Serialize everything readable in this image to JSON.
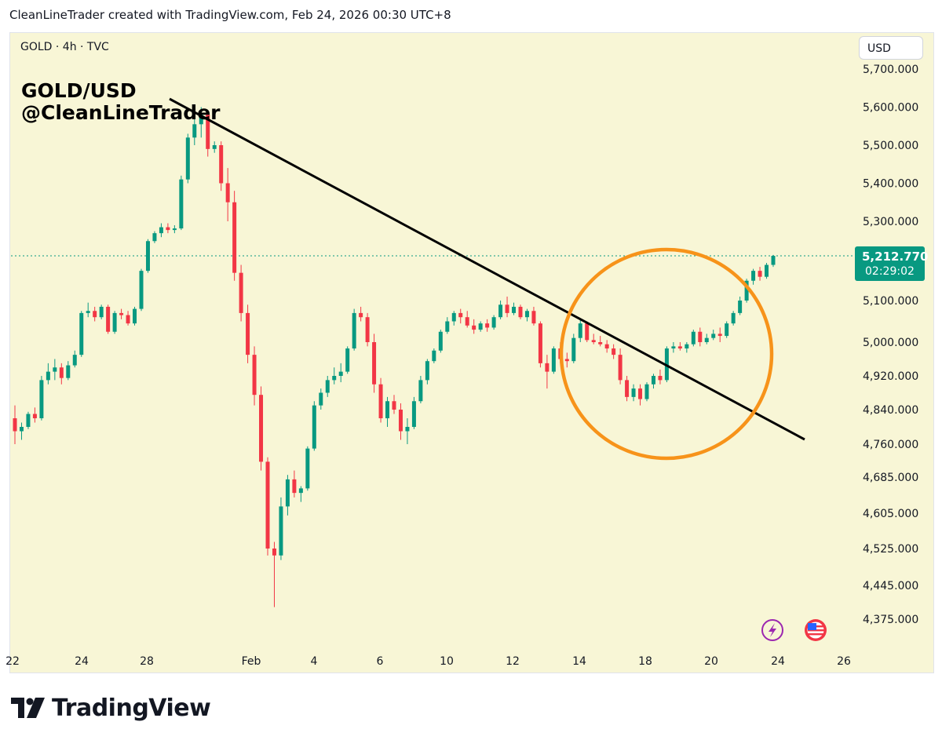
{
  "header": {
    "attribution": "CleanLineTrader created with TradingView.com, Feb 24, 2026 00:30 UTC+8"
  },
  "symbol_line": "GOLD · 4h · TVC",
  "watermark": {
    "line1": "GOLD/USD",
    "line2": "@CleanLineTrader"
  },
  "currency_button": "USD",
  "last_price": {
    "value": "5,212.770",
    "countdown": "02:29:02",
    "color": "#089981"
  },
  "footer": {
    "brand": "TradingView"
  },
  "icons": [
    "lightning-icon",
    "us-flag-icon",
    "tradingview-logo-icon"
  ],
  "colors": {
    "background": "#f8f6d6",
    "up": "#089981",
    "down": "#f23645",
    "trendline": "#000000",
    "circle": "#f7931a"
  },
  "chart_data": {
    "type": "candlestick",
    "timeframe": "4h",
    "y_ticks": [
      5700,
      5600,
      5500,
      5400,
      5300,
      5100,
      5000,
      4920,
      4840,
      4760,
      4685,
      4605,
      4525,
      4445,
      4375
    ],
    "y_tick_labels": [
      "5,700.000",
      "5,600.000",
      "5,500.000",
      "5,400.000",
      "5,300.000",
      "5,100.000",
      "5,000.000",
      "4,920.000",
      "4,840.000",
      "4,760.000",
      "4,685.000",
      "4,605.000",
      "4,525.000",
      "4,445.000",
      "4,375.000"
    ],
    "x_ticks": [
      "22",
      "24",
      "28",
      "Feb",
      "4",
      "6",
      "10",
      "12",
      "14",
      "18",
      "20",
      "24",
      "26"
    ],
    "last_price": 5212.77,
    "ohlc": [
      [
        4820,
        4850,
        4760,
        4790
      ],
      [
        4790,
        4810,
        4770,
        4800
      ],
      [
        4800,
        4835,
        4795,
        4830
      ],
      [
        4830,
        4845,
        4810,
        4820
      ],
      [
        4820,
        4920,
        4815,
        4910
      ],
      [
        4910,
        4950,
        4900,
        4930
      ],
      [
        4930,
        4960,
        4910,
        4940
      ],
      [
        4940,
        4950,
        4900,
        4915
      ],
      [
        4915,
        4955,
        4910,
        4945
      ],
      [
        4945,
        4980,
        4940,
        4970
      ],
      [
        4970,
        5075,
        4965,
        5070
      ],
      [
        5070,
        5095,
        5060,
        5075
      ],
      [
        5075,
        5085,
        5050,
        5060
      ],
      [
        5060,
        5090,
        5055,
        5085
      ],
      [
        5085,
        5090,
        5020,
        5025
      ],
      [
        5025,
        5075,
        5020,
        5070
      ],
      [
        5070,
        5080,
        5055,
        5065
      ],
      [
        5065,
        5075,
        5040,
        5045
      ],
      [
        5045,
        5085,
        5040,
        5080
      ],
      [
        5080,
        5180,
        5075,
        5175
      ],
      [
        5175,
        5255,
        5170,
        5250
      ],
      [
        5250,
        5275,
        5245,
        5270
      ],
      [
        5270,
        5295,
        5260,
        5285
      ],
      [
        5285,
        5295,
        5270,
        5278
      ],
      [
        5278,
        5290,
        5270,
        5282
      ],
      [
        5282,
        5420,
        5278,
        5410
      ],
      [
        5410,
        5530,
        5400,
        5520
      ],
      [
        5520,
        5590,
        5500,
        5555
      ],
      [
        5555,
        5600,
        5520,
        5580
      ],
      [
        5580,
        5590,
        5470,
        5490
      ],
      [
        5490,
        5510,
        5480,
        5500
      ],
      [
        5500,
        5510,
        5380,
        5400
      ],
      [
        5400,
        5440,
        5300,
        5350
      ],
      [
        5350,
        5380,
        5150,
        5170
      ],
      [
        5170,
        5190,
        5050,
        5070
      ],
      [
        5070,
        5090,
        4950,
        4970
      ],
      [
        4970,
        4990,
        4850,
        4875
      ],
      [
        4875,
        4895,
        4700,
        4720
      ],
      [
        4720,
        4730,
        4510,
        4525
      ],
      [
        4525,
        4540,
        4400,
        4510
      ],
      [
        4510,
        4640,
        4500,
        4620
      ],
      [
        4620,
        4690,
        4600,
        4680
      ],
      [
        4680,
        4700,
        4640,
        4650
      ],
      [
        4650,
        4665,
        4630,
        4660
      ],
      [
        4660,
        4755,
        4655,
        4750
      ],
      [
        4750,
        4860,
        4745,
        4850
      ],
      [
        4850,
        4890,
        4840,
        4880
      ],
      [
        4880,
        4920,
        4870,
        4910
      ],
      [
        4910,
        4940,
        4900,
        4920
      ],
      [
        4920,
        4950,
        4905,
        4930
      ],
      [
        4930,
        4990,
        4925,
        4985
      ],
      [
        4985,
        5080,
        4980,
        5070
      ],
      [
        5070,
        5085,
        5050,
        5060
      ],
      [
        5060,
        5070,
        4990,
        5000
      ],
      [
        5000,
        5020,
        4880,
        4900
      ],
      [
        4900,
        4915,
        4810,
        4820
      ],
      [
        4820,
        4870,
        4800,
        4860
      ],
      [
        4860,
        4875,
        4830,
        4840
      ],
      [
        4840,
        4855,
        4770,
        4790
      ],
      [
        4790,
        4820,
        4760,
        4800
      ],
      [
        4800,
        4870,
        4795,
        4860
      ],
      [
        4860,
        4920,
        4855,
        4910
      ],
      [
        4910,
        4960,
        4900,
        4955
      ],
      [
        4955,
        4985,
        4950,
        4980
      ],
      [
        4980,
        5030,
        4975,
        5025
      ],
      [
        5025,
        5060,
        5020,
        5050
      ],
      [
        5050,
        5075,
        5040,
        5070
      ],
      [
        5070,
        5080,
        5045,
        5060
      ],
      [
        5060,
        5075,
        5035,
        5040
      ],
      [
        5040,
        5055,
        5020,
        5030
      ],
      [
        5030,
        5050,
        5025,
        5045
      ],
      [
        5045,
        5055,
        5025,
        5035
      ],
      [
        5035,
        5065,
        5030,
        5060
      ],
      [
        5060,
        5100,
        5055,
        5090
      ],
      [
        5090,
        5110,
        5060,
        5070
      ],
      [
        5070,
        5095,
        5065,
        5085
      ],
      [
        5085,
        5090,
        5055,
        5060
      ],
      [
        5060,
        5080,
        5050,
        5075
      ],
      [
        5075,
        5085,
        5040,
        5045
      ],
      [
        5045,
        5050,
        4940,
        4950
      ],
      [
        4950,
        4970,
        4890,
        4930
      ],
      [
        4930,
        4990,
        4925,
        4985
      ],
      [
        4985,
        5000,
        4950,
        4960
      ],
      [
        4960,
        4975,
        4940,
        4955
      ],
      [
        4955,
        5020,
        4950,
        5010
      ],
      [
        5010,
        5055,
        5000,
        5045
      ],
      [
        5045,
        5050,
        5000,
        5005
      ],
      [
        5005,
        5020,
        4995,
        5000
      ],
      [
        5000,
        5015,
        4990,
        4995
      ],
      [
        4995,
        5005,
        4975,
        4985
      ],
      [
        4985,
        4995,
        4960,
        4970
      ],
      [
        4970,
        4985,
        4900,
        4910
      ],
      [
        4910,
        4920,
        4860,
        4870
      ],
      [
        4870,
        4900,
        4860,
        4890
      ],
      [
        4890,
        4900,
        4850,
        4865
      ],
      [
        4865,
        4905,
        4860,
        4900
      ],
      [
        4900,
        4925,
        4890,
        4920
      ],
      [
        4920,
        4935,
        4900,
        4910
      ],
      [
        4910,
        4990,
        4905,
        4985
      ],
      [
        4985,
        5000,
        4975,
        4990
      ],
      [
        4990,
        5000,
        4980,
        4985
      ],
      [
        4985,
        5000,
        4975,
        4995
      ],
      [
        4995,
        5030,
        4990,
        5025
      ],
      [
        5025,
        5035,
        4990,
        5000
      ],
      [
        5000,
        5020,
        4995,
        5010
      ],
      [
        5010,
        5030,
        5005,
        5020
      ],
      [
        5020,
        5035,
        5000,
        5015
      ],
      [
        5015,
        5050,
        5010,
        5045
      ],
      [
        5045,
        5075,
        5040,
        5070
      ],
      [
        5070,
        5110,
        5065,
        5100
      ],
      [
        5100,
        5155,
        5095,
        5150
      ],
      [
        5150,
        5180,
        5140,
        5175
      ],
      [
        5175,
        5185,
        5150,
        5160
      ],
      [
        5160,
        5195,
        5155,
        5190
      ],
      [
        5190,
        5215,
        5185,
        5212.77
      ]
    ]
  }
}
